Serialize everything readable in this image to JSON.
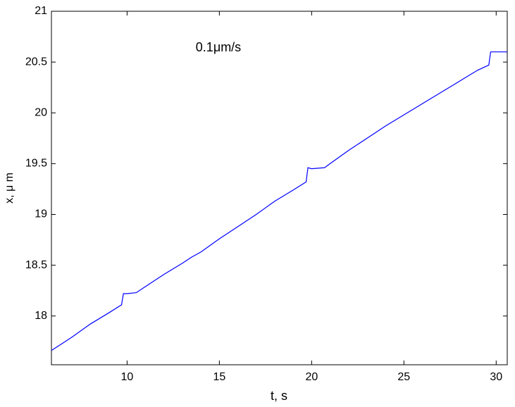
{
  "chart_data": {
    "type": "line",
    "annotation": "0.1μm/s",
    "xlabel": "t, s",
    "ylabel": "x, μ m",
    "color": "#0000ff",
    "x": [
      5.9,
      7,
      8,
      9,
      9.7,
      9.8,
      10,
      10.5,
      11,
      12,
      13,
      13.5,
      14,
      15,
      16,
      17,
      18,
      19,
      19.7,
      19.8,
      20,
      20.7,
      21,
      22,
      23,
      24,
      25,
      26,
      27,
      28,
      29,
      29.6,
      29.7,
      30,
      30.6
    ],
    "values": [
      17.66,
      17.79,
      17.92,
      18.03,
      18.11,
      18.22,
      18.22,
      18.23,
      18.29,
      18.41,
      18.52,
      18.58,
      18.63,
      18.76,
      18.88,
      19.0,
      19.13,
      19.24,
      19.32,
      19.46,
      19.45,
      19.46,
      19.5,
      19.63,
      19.75,
      19.87,
      19.98,
      20.09,
      20.2,
      20.31,
      20.42,
      20.47,
      20.6,
      20.6,
      20.6
    ],
    "xlim": [
      5.9,
      30.6
    ],
    "xticks": [
      10,
      15,
      20,
      25,
      30
    ],
    "ylim": [
      17.52,
      21
    ],
    "yticks": [
      18,
      18.5,
      19,
      19.5,
      20,
      20.5,
      21
    ]
  }
}
